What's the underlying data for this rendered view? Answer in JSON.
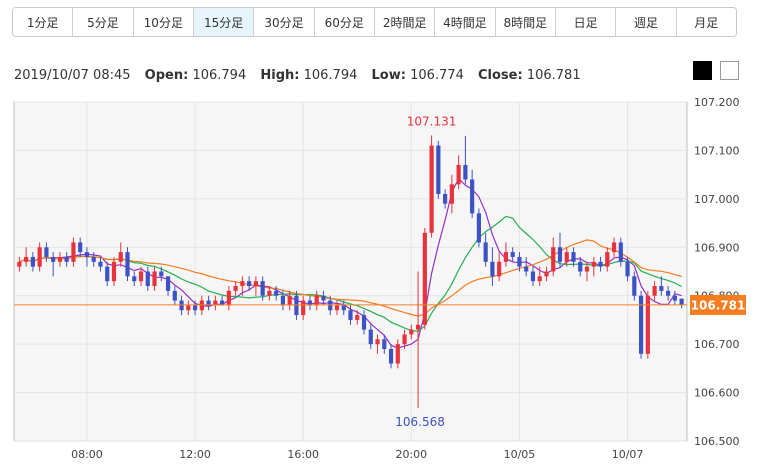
{
  "tabs": [
    {
      "label": "1分足",
      "active": false
    },
    {
      "label": "5分足",
      "active": false
    },
    {
      "label": "10分足",
      "active": false
    },
    {
      "label": "15分足",
      "active": true
    },
    {
      "label": "30分足",
      "active": false
    },
    {
      "label": "60分足",
      "active": false
    },
    {
      "label": "2時間足",
      "active": false
    },
    {
      "label": "4時間足",
      "active": false
    },
    {
      "label": "8時間足",
      "active": false
    },
    {
      "label": "日足",
      "active": false
    },
    {
      "label": "週足",
      "active": false
    },
    {
      "label": "月足",
      "active": false
    }
  ],
  "info": {
    "datetime": "2019/10/07 08:45",
    "open_label": "Open:",
    "open": "106.794",
    "high_label": "High:",
    "high": "106.794",
    "low_label": "Low:",
    "low": "106.774",
    "close_label": "Close:",
    "close": "106.781"
  },
  "theme_buttons": {
    "dark": "black",
    "light": "white"
  },
  "chart_data": {
    "type": "candlestick",
    "title": "",
    "y_ticks": [
      "107.200",
      "107.100",
      "107.000",
      "106.900",
      "106.800",
      "106.700",
      "106.600",
      "106.500"
    ],
    "ylim": [
      106.5,
      107.2
    ],
    "x_ticks": [
      "08:00",
      "12:00",
      "16:00",
      "20:00",
      "10/05",
      "10/07"
    ],
    "x_tick_index": [
      10,
      26,
      42,
      58,
      74,
      90
    ],
    "current_price": 106.781,
    "current_price_label": "106.781",
    "max_annotation": {
      "value": 107.131,
      "label": "107.131",
      "index": 61
    },
    "min_annotation": {
      "value": 106.568,
      "label": "106.568",
      "index": 59
    },
    "colors": {
      "up": "#e8323c",
      "down": "#3d52c4",
      "ma_fast": "#9b2ec9",
      "ma_mid": "#22b14c",
      "ma_slow": "#f57c21",
      "price_line": "#f57c21"
    },
    "ohlc": [
      [
        106.86,
        106.88,
        106.85,
        106.87
      ],
      [
        106.87,
        106.9,
        106.86,
        106.88
      ],
      [
        106.88,
        106.89,
        106.85,
        106.86
      ],
      [
        106.86,
        106.91,
        106.85,
        106.9
      ],
      [
        106.9,
        106.91,
        106.87,
        106.88
      ],
      [
        106.88,
        106.89,
        106.84,
        106.87
      ],
      [
        106.87,
        106.89,
        106.86,
        106.88
      ],
      [
        106.88,
        106.89,
        106.86,
        106.87
      ],
      [
        106.87,
        106.92,
        106.86,
        106.91
      ],
      [
        106.91,
        106.92,
        106.88,
        106.89
      ],
      [
        106.89,
        106.9,
        106.86,
        106.88
      ],
      [
        106.88,
        106.89,
        106.86,
        106.87
      ],
      [
        106.87,
        106.88,
        106.85,
        106.86
      ],
      [
        106.86,
        106.87,
        106.82,
        106.83
      ],
      [
        106.83,
        106.88,
        106.82,
        106.87
      ],
      [
        106.87,
        106.91,
        106.86,
        106.89
      ],
      [
        106.89,
        106.9,
        106.83,
        106.84
      ],
      [
        106.84,
        106.85,
        106.82,
        106.83
      ],
      [
        106.83,
        106.86,
        106.82,
        106.85
      ],
      [
        106.85,
        106.86,
        106.81,
        106.82
      ],
      [
        106.82,
        106.86,
        106.81,
        106.85
      ],
      [
        106.85,
        106.86,
        106.83,
        106.84
      ],
      [
        106.84,
        106.84,
        106.8,
        106.81
      ],
      [
        106.81,
        106.82,
        106.78,
        106.79
      ],
      [
        106.79,
        106.8,
        106.76,
        106.77
      ],
      [
        106.77,
        106.79,
        106.76,
        106.78
      ],
      [
        106.78,
        106.79,
        106.76,
        106.77
      ],
      [
        106.77,
        106.8,
        106.76,
        106.79
      ],
      [
        106.79,
        106.8,
        106.77,
        106.78
      ],
      [
        106.78,
        106.8,
        106.77,
        106.79
      ],
      [
        106.79,
        106.8,
        106.78,
        106.78
      ],
      [
        106.78,
        106.82,
        106.77,
        106.81
      ],
      [
        106.81,
        106.83,
        106.8,
        106.82
      ],
      [
        106.82,
        106.84,
        106.8,
        106.83
      ],
      [
        106.83,
        106.84,
        106.81,
        106.82
      ],
      [
        106.82,
        106.84,
        106.8,
        106.83
      ],
      [
        106.83,
        106.84,
        106.79,
        106.8
      ],
      [
        106.8,
        106.82,
        106.79,
        106.81
      ],
      [
        106.81,
        106.82,
        106.79,
        106.8
      ],
      [
        106.8,
        106.81,
        106.77,
        106.78
      ],
      [
        106.78,
        106.81,
        106.77,
        106.8
      ],
      [
        106.8,
        106.81,
        106.75,
        106.76
      ],
      [
        106.76,
        106.8,
        106.75,
        106.79
      ],
      [
        106.79,
        106.8,
        106.77,
        106.78
      ],
      [
        106.78,
        106.81,
        106.77,
        106.8
      ],
      [
        106.8,
        106.81,
        106.78,
        106.79
      ],
      [
        106.79,
        106.8,
        106.76,
        106.77
      ],
      [
        106.77,
        106.79,
        106.76,
        106.78
      ],
      [
        106.78,
        106.79,
        106.76,
        106.77
      ],
      [
        106.77,
        106.78,
        106.74,
        106.75
      ],
      [
        106.75,
        106.77,
        106.74,
        106.76
      ],
      [
        106.76,
        106.77,
        106.72,
        106.73
      ],
      [
        106.73,
        106.74,
        106.69,
        106.7
      ],
      [
        106.7,
        106.72,
        106.68,
        106.71
      ],
      [
        106.71,
        106.72,
        106.68,
        106.69
      ],
      [
        106.69,
        106.7,
        106.65,
        106.66
      ],
      [
        106.66,
        106.71,
        106.65,
        106.7
      ],
      [
        106.7,
        106.73,
        106.69,
        106.72
      ],
      [
        106.72,
        106.74,
        106.71,
        106.73
      ],
      [
        106.73,
        106.85,
        106.568,
        106.74
      ],
      [
        106.74,
        106.94,
        106.73,
        106.93
      ],
      [
        106.93,
        107.131,
        106.92,
        107.11
      ],
      [
        107.11,
        107.12,
        107.0,
        107.01
      ],
      [
        107.01,
        107.02,
        106.98,
        106.99
      ],
      [
        106.99,
        107.05,
        106.97,
        107.03
      ],
      [
        107.03,
        107.09,
        107.02,
        107.07
      ],
      [
        107.07,
        107.13,
        107.03,
        107.04
      ],
      [
        107.04,
        107.06,
        106.96,
        106.97
      ],
      [
        106.97,
        106.98,
        106.9,
        106.91
      ],
      [
        106.91,
        106.93,
        106.86,
        106.87
      ],
      [
        106.87,
        106.9,
        106.82,
        106.84
      ],
      [
        106.84,
        106.89,
        106.83,
        106.87
      ],
      [
        106.87,
        106.91,
        106.86,
        106.89
      ],
      [
        106.89,
        106.9,
        106.87,
        106.88
      ],
      [
        106.88,
        106.89,
        106.85,
        106.86
      ],
      [
        106.86,
        106.88,
        106.84,
        106.85
      ],
      [
        106.85,
        106.86,
        106.82,
        106.83
      ],
      [
        106.83,
        106.86,
        106.82,
        106.84
      ],
      [
        106.84,
        106.86,
        106.83,
        106.85
      ],
      [
        106.85,
        106.92,
        106.84,
        106.9
      ],
      [
        106.9,
        106.93,
        106.86,
        106.87
      ],
      [
        106.87,
        106.9,
        106.86,
        106.89
      ],
      [
        106.89,
        106.9,
        106.86,
        106.87
      ],
      [
        106.87,
        106.88,
        106.84,
        106.85
      ],
      [
        106.85,
        106.87,
        106.83,
        106.86
      ],
      [
        106.86,
        106.88,
        106.84,
        106.87
      ],
      [
        106.87,
        106.88,
        106.85,
        106.86
      ],
      [
        106.86,
        106.9,
        106.85,
        106.89
      ],
      [
        106.89,
        106.92,
        106.88,
        106.91
      ],
      [
        106.91,
        106.92,
        106.86,
        106.87
      ],
      [
        106.87,
        106.88,
        106.83,
        106.84
      ],
      [
        106.84,
        106.85,
        106.79,
        106.8
      ],
      [
        106.8,
        106.81,
        106.67,
        106.68
      ],
      [
        106.68,
        106.81,
        106.67,
        106.8
      ],
      [
        106.8,
        106.83,
        106.79,
        106.82
      ],
      [
        106.82,
        106.84,
        106.8,
        106.81
      ],
      [
        106.81,
        106.82,
        106.79,
        106.8
      ],
      [
        106.8,
        106.81,
        106.78,
        106.79
      ],
      [
        106.794,
        106.794,
        106.774,
        106.781
      ]
    ]
  }
}
